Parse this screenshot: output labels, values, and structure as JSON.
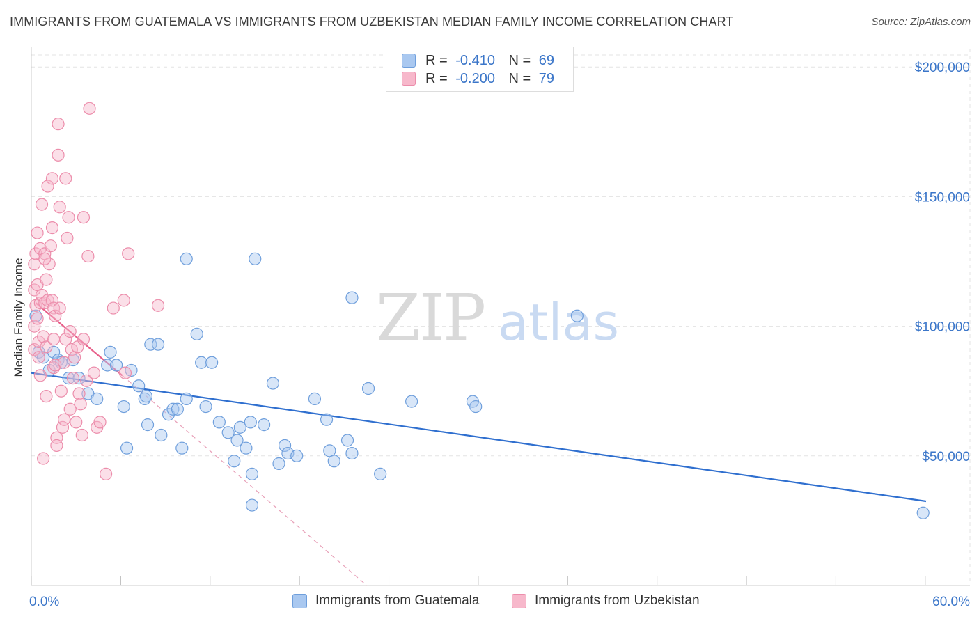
{
  "title": "IMMIGRANTS FROM GUATEMALA VS IMMIGRANTS FROM UZBEKISTAN MEDIAN FAMILY INCOME CORRELATION CHART",
  "source": "Source: ZipAtlas.com",
  "watermark": {
    "zip": "ZIP",
    "atlas": "atlas"
  },
  "legend": {
    "guatemala": {
      "r_label": "R =",
      "r_value": "-0.410",
      "n_label": "N =",
      "n_value": "69"
    },
    "uzbekistan": {
      "r_label": "R =",
      "r_value": "-0.200",
      "n_label": "N =",
      "n_value": "79"
    }
  },
  "bottom_legend": {
    "guatemala": "Immigrants from Guatemala",
    "uzbekistan": "Immigrants from Uzbekistan"
  },
  "colors": {
    "guatemala_fill": "#a9c8f0",
    "guatemala_stroke": "#6f9fdc",
    "guatemala_line": "#2f6fcf",
    "uzbekistan_fill": "#f7b8cb",
    "uzbekistan_stroke": "#ec8dab",
    "uzbekistan_line": "#e8608a",
    "tick_text": "#3b76c9",
    "grid": "#e3e3e3"
  },
  "chart_data": {
    "type": "scatter",
    "ylabel": "Median Family Income",
    "xlim": [
      0,
      60
    ],
    "ylim": [
      0,
      210000
    ],
    "x_tick_labels": [
      "0.0%",
      "60.0%"
    ],
    "y_tick_labels": [
      {
        "value": 50000,
        "label": "$50,000"
      },
      {
        "value": 100000,
        "label": "$100,000"
      },
      {
        "value": 150000,
        "label": "$150,000"
      },
      {
        "value": 200000,
        "label": "$200,000"
      }
    ],
    "grid": true,
    "series": [
      {
        "name": "Immigrants from Guatemala",
        "color": "#6f9fdc",
        "points": [
          [
            0.3,
            104000
          ],
          [
            0.5,
            90000
          ],
          [
            0.8,
            88000
          ],
          [
            1.2,
            83000
          ],
          [
            1.5,
            90000
          ],
          [
            1.8,
            87000
          ],
          [
            2.0,
            86000
          ],
          [
            2.5,
            80000
          ],
          [
            2.8,
            87000
          ],
          [
            3.2,
            80000
          ],
          [
            3.8,
            74000
          ],
          [
            4.4,
            72000
          ],
          [
            5.1,
            85000
          ],
          [
            5.3,
            90000
          ],
          [
            5.7,
            85000
          ],
          [
            6.2,
            69000
          ],
          [
            6.4,
            53000
          ],
          [
            6.7,
            83000
          ],
          [
            7.2,
            77000
          ],
          [
            7.6,
            72000
          ],
          [
            7.7,
            73000
          ],
          [
            7.8,
            62000
          ],
          [
            8.0,
            93000
          ],
          [
            8.5,
            93000
          ],
          [
            8.7,
            58000
          ],
          [
            9.2,
            66000
          ],
          [
            9.5,
            68000
          ],
          [
            9.8,
            68000
          ],
          [
            10.1,
            53000
          ],
          [
            10.4,
            72000
          ],
          [
            10.4,
            126000
          ],
          [
            11.1,
            97000
          ],
          [
            11.4,
            86000
          ],
          [
            11.7,
            69000
          ],
          [
            12.1,
            86000
          ],
          [
            12.6,
            63000
          ],
          [
            13.2,
            59000
          ],
          [
            13.6,
            48000
          ],
          [
            13.8,
            56000
          ],
          [
            14.0,
            61000
          ],
          [
            14.4,
            53000
          ],
          [
            14.7,
            63000
          ],
          [
            14.8,
            43000
          ],
          [
            14.8,
            31000
          ],
          [
            15.0,
            126000
          ],
          [
            15.6,
            62000
          ],
          [
            16.2,
            78000
          ],
          [
            16.6,
            47000
          ],
          [
            17.0,
            54000
          ],
          [
            17.2,
            51000
          ],
          [
            17.8,
            50000
          ],
          [
            19.0,
            72000
          ],
          [
            19.8,
            64000
          ],
          [
            20.0,
            52000
          ],
          [
            20.3,
            48000
          ],
          [
            21.2,
            56000
          ],
          [
            21.5,
            51000
          ],
          [
            21.5,
            111000
          ],
          [
            22.6,
            76000
          ],
          [
            23.4,
            43000
          ],
          [
            25.5,
            71000
          ],
          [
            29.6,
            71000
          ],
          [
            29.8,
            69000
          ],
          [
            36.6,
            104000
          ],
          [
            59.8,
            28000
          ]
        ],
        "trend": {
          "x": [
            0,
            60
          ],
          "y": [
            82000,
            32500
          ]
        }
      },
      {
        "name": "Immigrants from Uzbekistan",
        "color": "#ec8dab",
        "points": [
          [
            0.2,
            124000
          ],
          [
            0.2,
            114000
          ],
          [
            0.2,
            100000
          ],
          [
            0.2,
            91000
          ],
          [
            0.3,
            108000
          ],
          [
            0.3,
            128000
          ],
          [
            0.4,
            136000
          ],
          [
            0.4,
            116000
          ],
          [
            0.5,
            94000
          ],
          [
            0.5,
            88000
          ],
          [
            0.6,
            130000
          ],
          [
            0.6,
            109000
          ],
          [
            0.6,
            81000
          ],
          [
            0.7,
            147000
          ],
          [
            0.7,
            112000
          ],
          [
            0.8,
            96000
          ],
          [
            0.8,
            49000
          ],
          [
            0.9,
            128000
          ],
          [
            0.9,
            109000
          ],
          [
            1.0,
            92000
          ],
          [
            1.0,
            73000
          ],
          [
            1.1,
            154000
          ],
          [
            1.1,
            110000
          ],
          [
            1.2,
            124000
          ],
          [
            1.3,
            131000
          ],
          [
            1.4,
            110000
          ],
          [
            1.4,
            138000
          ],
          [
            1.4,
            157000
          ],
          [
            1.5,
            107000
          ],
          [
            1.5,
            95000
          ],
          [
            1.5,
            84000
          ],
          [
            1.6,
            104000
          ],
          [
            1.6,
            85000
          ],
          [
            1.7,
            57000
          ],
          [
            1.7,
            54000
          ],
          [
            1.8,
            166000
          ],
          [
            1.8,
            178000
          ],
          [
            1.9,
            146000
          ],
          [
            2.0,
            75000
          ],
          [
            2.1,
            61000
          ],
          [
            2.2,
            64000
          ],
          [
            2.2,
            86000
          ],
          [
            2.3,
            157000
          ],
          [
            2.3,
            95000
          ],
          [
            2.4,
            134000
          ],
          [
            2.5,
            142000
          ],
          [
            2.6,
            68000
          ],
          [
            2.7,
            91000
          ],
          [
            2.8,
            80000
          ],
          [
            2.9,
            88000
          ],
          [
            3.0,
            63000
          ],
          [
            3.1,
            92000
          ],
          [
            3.2,
            74000
          ],
          [
            3.3,
            70000
          ],
          [
            3.4,
            58000
          ],
          [
            3.5,
            142000
          ],
          [
            3.5,
            95000
          ],
          [
            3.7,
            79000
          ],
          [
            3.8,
            127000
          ],
          [
            3.9,
            184000
          ],
          [
            4.2,
            82000
          ],
          [
            4.4,
            61000
          ],
          [
            4.6,
            63000
          ],
          [
            5.0,
            43000
          ],
          [
            5.5,
            107000
          ],
          [
            6.2,
            110000
          ],
          [
            6.3,
            82000
          ],
          [
            6.5,
            128000
          ],
          [
            8.5,
            108000
          ],
          [
            1.0,
            118000
          ],
          [
            0.4,
            103000
          ],
          [
            1.9,
            107000
          ],
          [
            2.6,
            98000
          ],
          [
            0.9,
            126000
          ]
        ],
        "trend": {
          "x": [
            0.3,
            6.1
          ],
          "y": [
            109000,
            81000
          ]
        },
        "trend_extension": {
          "x": [
            6.1,
            22.5
          ],
          "y": [
            81000,
            0
          ]
        }
      }
    ]
  }
}
